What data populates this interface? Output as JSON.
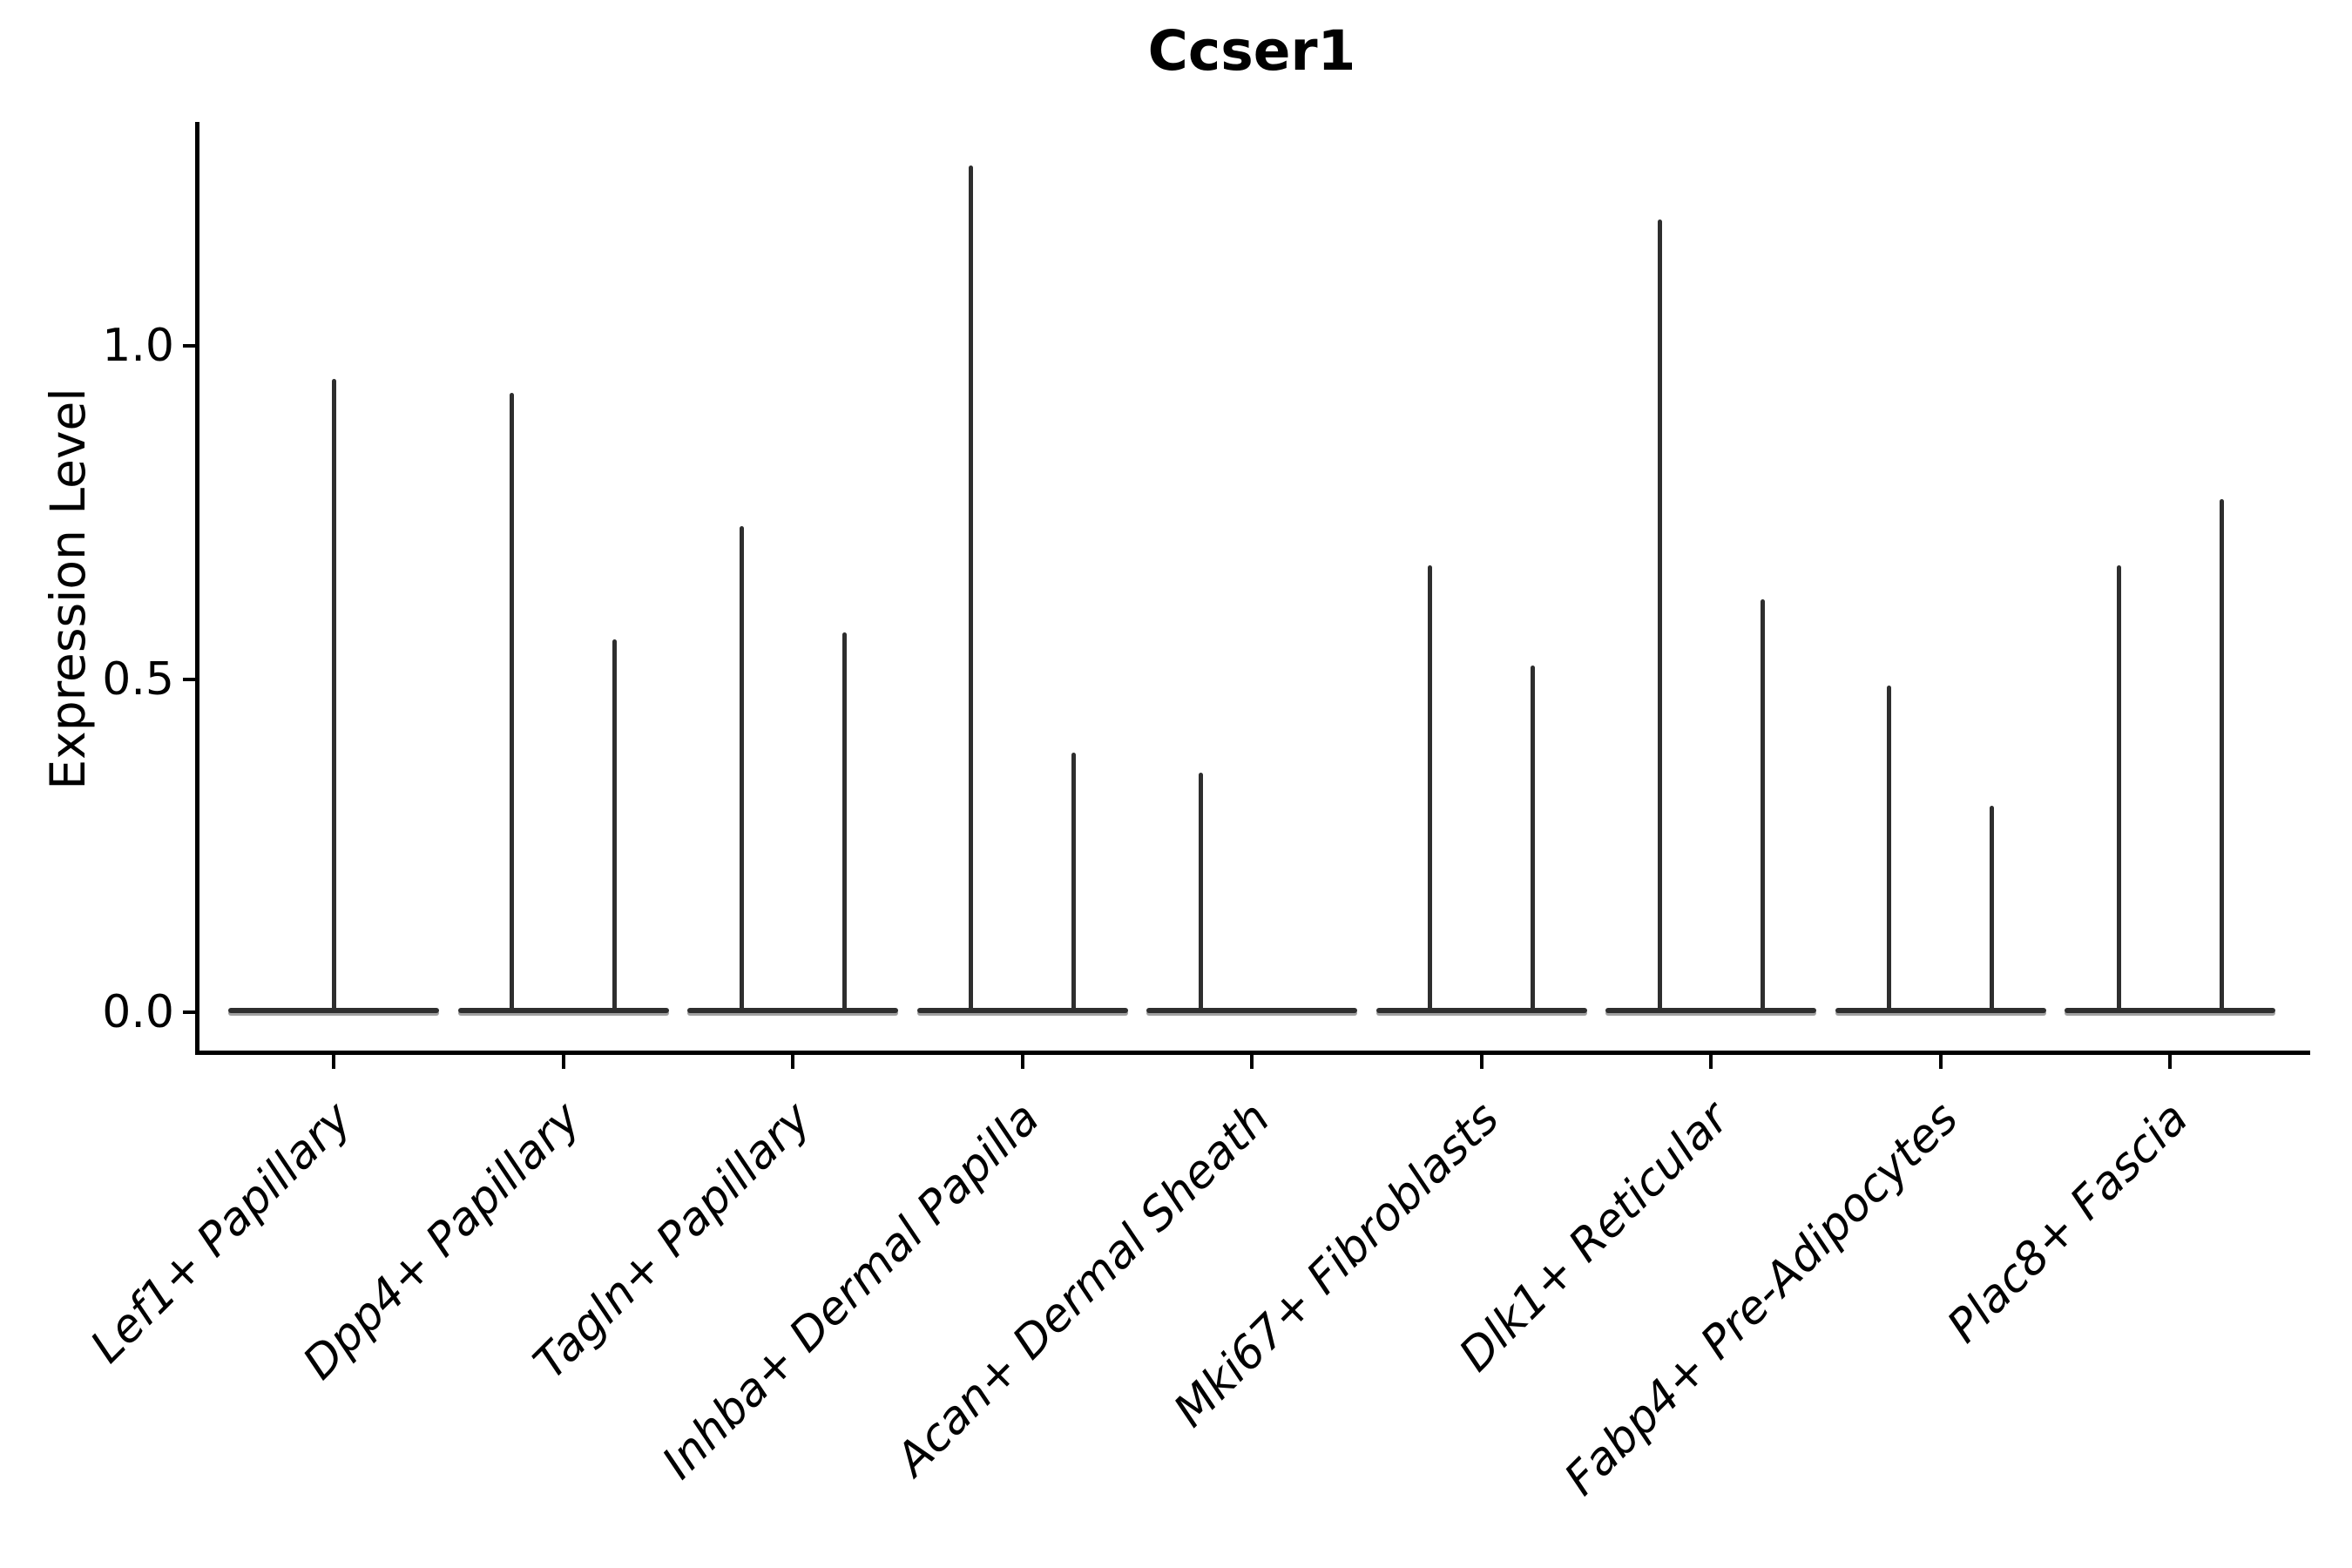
{
  "chart_data": {
    "type": "violin",
    "title": "Ccser1",
    "ylabel": "Expression Level",
    "xlabel": "",
    "ytick_labels": [
      "0.0",
      "0.5",
      "1.0"
    ],
    "ytick_values": [
      0.0,
      0.5,
      1.0
    ],
    "ylim": [
      -0.06,
      1.34
    ],
    "grid": false,
    "legend_position": "none",
    "categories": [
      "Lef1+ Papillary",
      "Dpp4+ Papillary",
      "Tagln+ Papillary",
      "Inhba+ Dermal Papilla",
      "Acan+ Dermal Sheath",
      "Mki67+ Fibroblasts",
      "Dlk1+ Reticular",
      "Fabp4+ Pre-Adipocytes",
      "Plac8+ Fascia"
    ],
    "violins": [
      {
        "category": "Lef1+ Papillary",
        "baseline_value": 0.0,
        "spikes": [
          {
            "side": "center",
            "max": 0.95
          }
        ]
      },
      {
        "category": "Dpp4+ Papillary",
        "baseline_value": 0.0,
        "spikes": [
          {
            "side": "left",
            "max": 0.93
          },
          {
            "side": "right",
            "max": 0.56
          }
        ]
      },
      {
        "category": "Tagln+ Papillary",
        "baseline_value": 0.0,
        "spikes": [
          {
            "side": "left",
            "max": 0.73
          },
          {
            "side": "right",
            "max": 0.57
          }
        ]
      },
      {
        "category": "Inhba+ Dermal Papilla",
        "baseline_value": 0.0,
        "spikes": [
          {
            "side": "left",
            "max": 1.27
          },
          {
            "side": "right",
            "max": 0.39
          }
        ]
      },
      {
        "category": "Acan+ Dermal Sheath",
        "baseline_value": 0.0,
        "spikes": [
          {
            "side": "left",
            "max": 0.36
          }
        ]
      },
      {
        "category": "Mki67+ Fibroblasts",
        "baseline_value": 0.0,
        "spikes": [
          {
            "side": "left",
            "max": 0.67
          },
          {
            "side": "right",
            "max": 0.52
          }
        ]
      },
      {
        "category": "Dlk1+ Reticular",
        "baseline_value": 0.0,
        "spikes": [
          {
            "side": "left",
            "max": 1.19
          },
          {
            "side": "right",
            "max": 0.62
          }
        ]
      },
      {
        "category": "Fabp4+ Pre-Adipocytes",
        "baseline_value": 0.0,
        "spikes": [
          {
            "side": "left",
            "max": 0.49
          },
          {
            "side": "right",
            "max": 0.31
          }
        ]
      },
      {
        "category": "Plac8+ Fascia",
        "baseline_value": 0.0,
        "spikes": [
          {
            "side": "left",
            "max": 0.67
          },
          {
            "side": "right",
            "max": 0.77
          }
        ]
      }
    ]
  },
  "colors": {
    "ink": "#2e2e2e",
    "spine": "#000000",
    "background": "#ffffff",
    "violin_underside": "#a8a8a8",
    "text": "#000000"
  }
}
